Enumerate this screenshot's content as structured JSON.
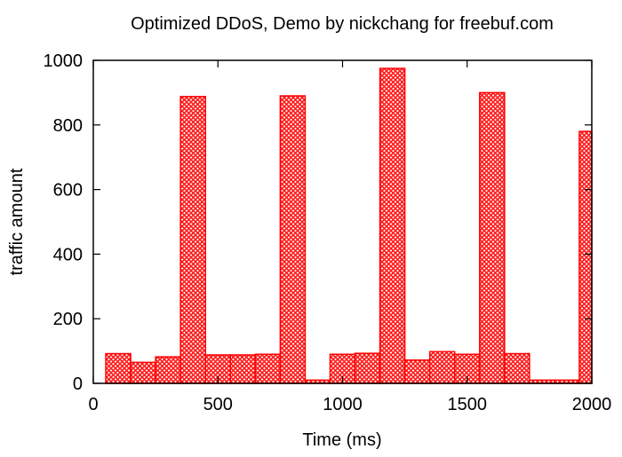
{
  "chart_data": {
    "type": "bar",
    "title": "Optimized DDoS, Demo by nickchang for freebuf.com",
    "xlabel": "Time (ms)",
    "ylabel": "traffic amount",
    "xlim": [
      0,
      2000
    ],
    "ylim": [
      0,
      1000
    ],
    "xticks": [
      0,
      500,
      1000,
      1500,
      2000
    ],
    "yticks": [
      0,
      200,
      400,
      600,
      800,
      1000
    ],
    "bin_width": 100,
    "x": [
      100,
      200,
      300,
      400,
      500,
      600,
      700,
      800,
      900,
      1000,
      1100,
      1200,
      1300,
      1400,
      1500,
      1600,
      1700,
      1800,
      1900,
      2000
    ],
    "values": [
      92,
      65,
      82,
      888,
      88,
      88,
      90,
      890,
      10,
      90,
      93,
      975,
      72,
      98,
      90,
      900,
      92,
      10,
      10,
      780
    ],
    "colors": {
      "bar": "#ff0000",
      "bar_fill": "#ff4d4d",
      "axis": "#000000"
    }
  }
}
